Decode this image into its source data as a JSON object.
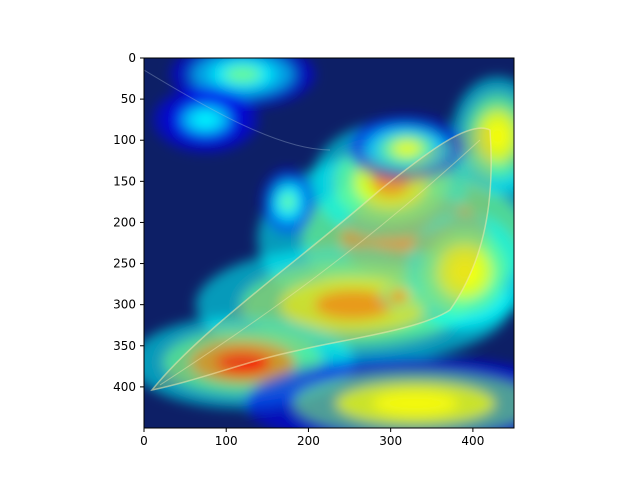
{
  "chart_data": {
    "type": "heatmap",
    "title": "",
    "xlabel": "",
    "ylabel": "",
    "xlim": [
      0,
      450
    ],
    "ylim": [
      450,
      0
    ],
    "x_ticks": [
      0,
      100,
      200,
      300,
      400
    ],
    "y_ticks": [
      0,
      50,
      100,
      150,
      200,
      250,
      300,
      350,
      400
    ],
    "x_tick_labels": [
      "0",
      "100",
      "200",
      "300",
      "400"
    ],
    "y_tick_labels": [
      "0",
      "50",
      "100",
      "150",
      "200",
      "250",
      "300",
      "350",
      "400"
    ],
    "grid": false,
    "colormap": "jet",
    "colormap_stops": [
      "#00007f",
      "#0000ff",
      "#00ffff",
      "#7fff7f",
      "#ffff00",
      "#ff7f00",
      "#ff0000"
    ],
    "background": "#ffffff",
    "hotspots": [
      {
        "x": 330,
        "y": 220,
        "rx": 120,
        "ry": 70,
        "intensity": 0.9
      },
      {
        "x": 300,
        "y": 150,
        "rx": 60,
        "ry": 45,
        "intensity": 0.8
      },
      {
        "x": 255,
        "y": 300,
        "rx": 120,
        "ry": 45,
        "intensity": 0.8
      },
      {
        "x": 120,
        "y": 370,
        "rx": 85,
        "ry": 35,
        "intensity": 0.95
      },
      {
        "x": 390,
        "y": 260,
        "rx": 45,
        "ry": 45,
        "intensity": 0.75
      },
      {
        "x": 330,
        "y": 420,
        "rx": 130,
        "ry": 35,
        "intensity": 0.7
      },
      {
        "x": 430,
        "y": 95,
        "rx": 35,
        "ry": 45,
        "intensity": 0.75
      },
      {
        "x": 320,
        "y": 110,
        "rx": 45,
        "ry": 25,
        "intensity": 0.6
      },
      {
        "x": 120,
        "y": 20,
        "rx": 55,
        "ry": 25,
        "intensity": 0.45
      },
      {
        "x": 75,
        "y": 75,
        "rx": 40,
        "ry": 25,
        "intensity": 0.4
      },
      {
        "x": 175,
        "y": 175,
        "rx": 20,
        "ry": 25,
        "intensity": 0.45
      },
      {
        "x": 310,
        "y": 290,
        "rx": 14,
        "ry": 10,
        "intensity": 1.0
      }
    ]
  }
}
